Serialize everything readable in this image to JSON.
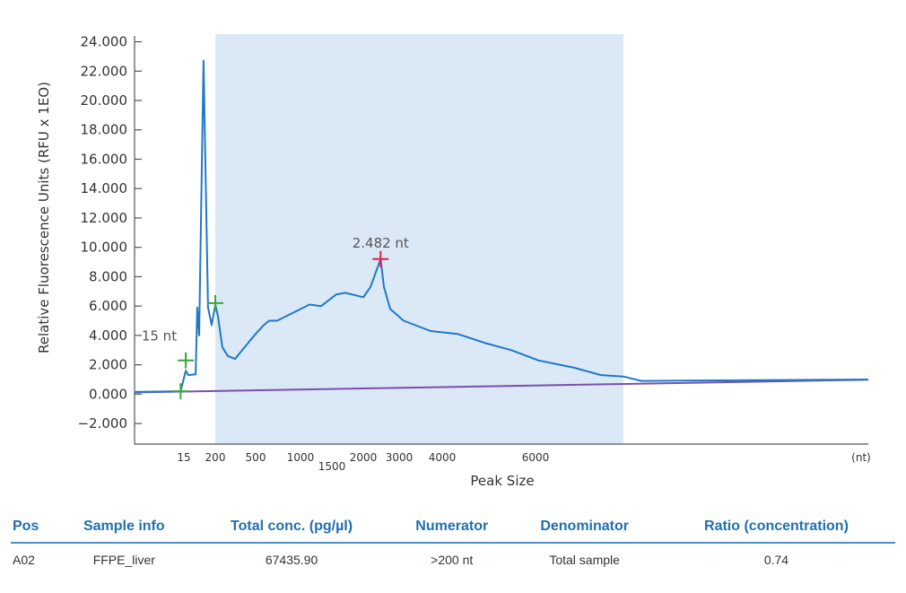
{
  "chart_data": {
    "type": "line",
    "title": "",
    "xlabel": "Peak Size",
    "x_unit_label": "(nt)",
    "ylabel": "Relative Fluorescence Units (RFU x 1EO)",
    "ylim": [
      -3400,
      24400
    ],
    "grid": false,
    "y_ticks": [
      -2000,
      0,
      2000,
      4000,
      6000,
      8000,
      10000,
      12000,
      14000,
      16000,
      18000,
      20000,
      22000,
      24000
    ],
    "y_tick_labels": [
      "−2.000",
      "0.000",
      "2.000",
      "4.000",
      "6.000",
      "8.000",
      "10.000",
      "12.000",
      "14.000",
      "16.000",
      "18.000",
      "20.000",
      "22.000",
      "24.000"
    ],
    "x_ticks": [
      15,
      200,
      500,
      1000,
      1500,
      2000,
      3000,
      4000,
      6000
    ],
    "x_tick_labels": [
      "15",
      "200",
      "500",
      "1000",
      "1500",
      "2000",
      "3000",
      "4000",
      "6000"
    ],
    "shaded_region": [
      200,
      7850
    ],
    "series": [
      {
        "name": "sample",
        "color": "#1f78c8",
        "x": [
          0,
          14,
          26,
          41,
          84,
          94,
          105,
          131,
          157,
          179,
          200,
          220,
          253,
          293,
          347,
          400,
          500,
          590,
          650,
          740,
          1143,
          1329,
          1571,
          1714,
          2000,
          2200,
          2482,
          2575,
          2750,
          3104,
          3729,
          4327,
          4904,
          5481,
          6058,
          6811,
          7377,
          7849,
          8226,
          13000
        ],
        "y": [
          150,
          200,
          1600,
          1300,
          1350,
          5900,
          4000,
          22700,
          5900,
          4700,
          6100,
          5300,
          3200,
          2600,
          2400,
          3000,
          4100,
          4700,
          5000,
          5000,
          6100,
          6000,
          6800,
          6900,
          6600,
          7300,
          9200,
          7300,
          5800,
          5000,
          4300,
          4100,
          3500,
          3000,
          2300,
          1800,
          1300,
          1200,
          900,
          1000
        ]
      },
      {
        "name": "baseline",
        "color": "#7a4fb0",
        "x": [
          0,
          13000
        ],
        "y": [
          120,
          980
        ]
      }
    ],
    "markers": [
      {
        "x": 14,
        "y": 200,
        "color": "#3aa83a"
      },
      {
        "x": 26,
        "y": 2300,
        "color": "#3aa83a",
        "label": "15 nt"
      },
      {
        "x": 200,
        "y": 6200,
        "color": "#3aa83a"
      },
      {
        "x": 2482,
        "y": 9200,
        "color": "#e0204a",
        "label": "2.482 nt"
      }
    ]
  },
  "table": {
    "headers": [
      "Pos",
      "Sample info",
      "Total conc. (pg/µl)",
      "Numerator",
      "Denominator",
      "Ratio (concentration)"
    ],
    "rows": [
      [
        "A02",
        "FFPE_liver",
        "67435.90",
        ">200 nt",
        "Total sample",
        "0.74"
      ]
    ]
  }
}
